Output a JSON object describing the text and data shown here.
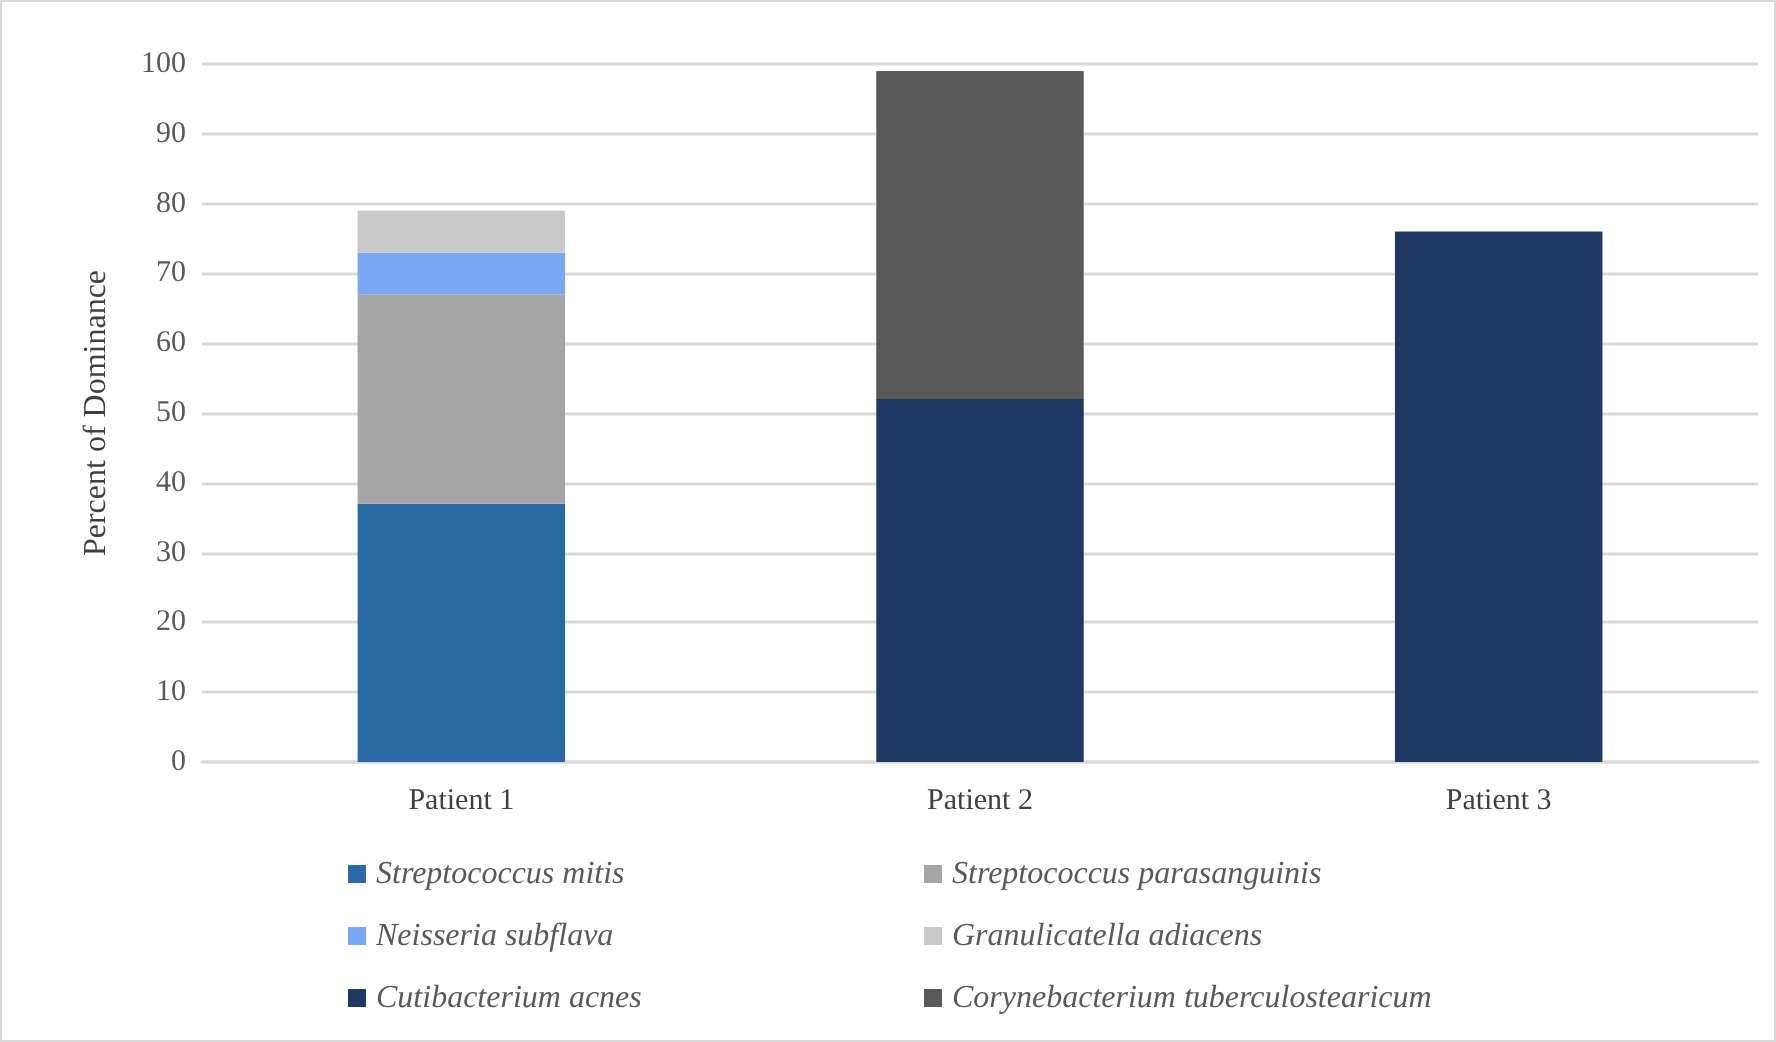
{
  "chart_data": {
    "type": "bar",
    "stacked": true,
    "ylabel": "Percent of Dominance",
    "categories": [
      "Patient 1",
      "Patient 2",
      "Patient 3"
    ],
    "series": [
      {
        "name": "Streptococcus mitis",
        "color": "#2b6aa6",
        "values": [
          37,
          null,
          null
        ]
      },
      {
        "name": "Streptococcus parasanguinis",
        "color": "#a5a5a5",
        "values": [
          30,
          null,
          null
        ]
      },
      {
        "name": "Neisseria subflava",
        "color": "#7aa7f2",
        "values": [
          6,
          null,
          null
        ]
      },
      {
        "name": "Granulicatella adiacens",
        "color": "#c9c9c9",
        "values": [
          6,
          null,
          null
        ]
      },
      {
        "name": "Cutibacterium acnes",
        "color": "#203864",
        "values": [
          null,
          52,
          76
        ]
      },
      {
        "name": "Corynebacterium tuberculostearicum",
        "color": "#595959",
        "values": [
          null,
          47,
          null
        ]
      }
    ],
    "ylim": [
      0,
      100
    ],
    "yticks": [
      0,
      10,
      20,
      30,
      40,
      50,
      60,
      70,
      80,
      90,
      100
    ],
    "grid": "y",
    "legend": "bottom"
  }
}
